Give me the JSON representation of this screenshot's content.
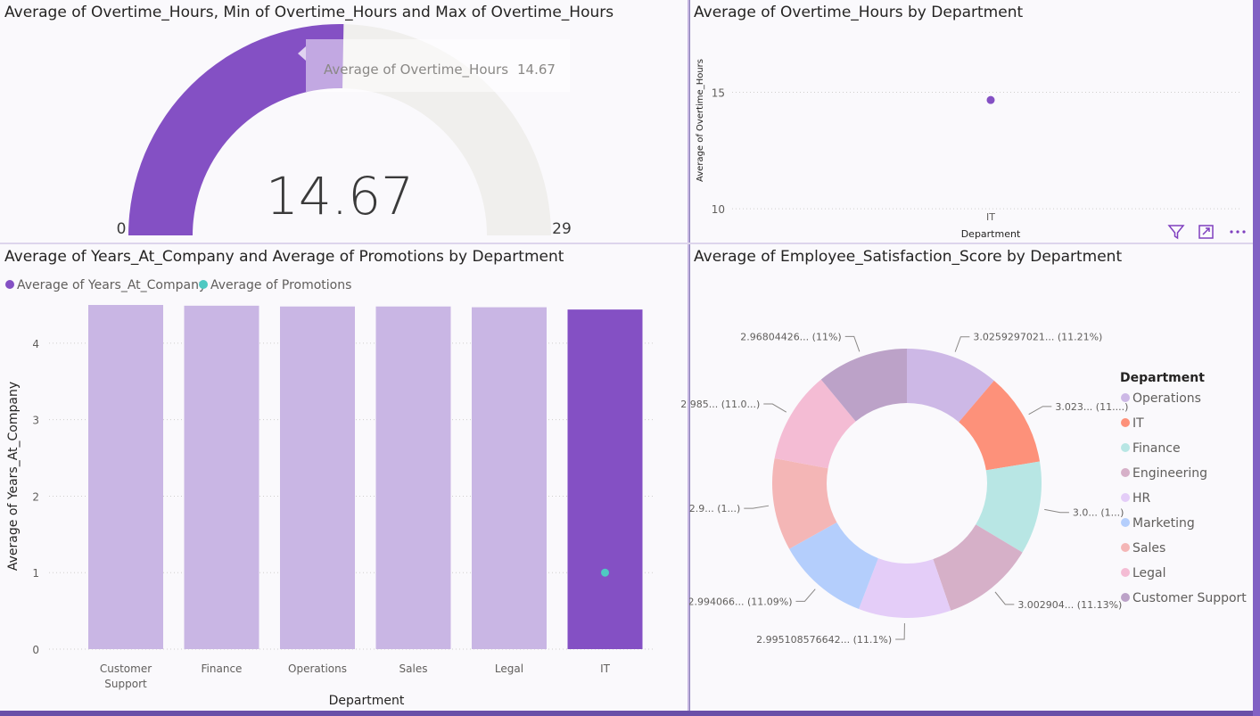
{
  "gauge": {
    "title": "Average of Overtime_Hours, Min of Overtime_Hours and Max of Overtime_Hours",
    "value_label": "14.67",
    "min_label": "0",
    "max_label": "29",
    "tooltip_label": "Average of Overtime_Hours",
    "tooltip_value": "14.67",
    "accent": "#8450c4",
    "track": "#f0efed"
  },
  "scatter": {
    "title": "Average of Overtime_Hours by Department"
  },
  "bars": {
    "title": "Average of Years_At_Company and Average of Promotions by Department",
    "legend": [
      "Average of Years_At_Company",
      "Average of Promotions"
    ],
    "category_labels": [
      "Customer\nSupport",
      "Finance",
      "Operations",
      "Sales",
      "Legal",
      "IT"
    ]
  },
  "donut": {
    "title": "Average of Employee_Satisfaction_Score by Department",
    "legend_title": "Department"
  },
  "icons": [
    "filter-icon",
    "focus-mode-icon",
    "more-options-icon"
  ],
  "chart_data": [
    {
      "type": "gauge",
      "value": 14.67,
      "min": 0,
      "max": 29
    },
    {
      "type": "scatter",
      "x": [
        "IT"
      ],
      "y": [
        14.67
      ],
      "xlabel": "Department",
      "ylabel": "Average of Overtime_Hours",
      "ylim": [
        9.2,
        18.2
      ],
      "yticks": [
        10,
        15
      ],
      "grid": true,
      "color": "#8450c4"
    },
    {
      "type": "bar",
      "categories": [
        "Customer Support",
        "Finance",
        "Operations",
        "Sales",
        "Legal",
        "IT"
      ],
      "series": [
        {
          "name": "Average of Years_At_Company",
          "values": [
            4.5,
            4.49,
            4.48,
            4.48,
            4.47,
            4.44
          ],
          "color": "#c9b6e4",
          "highlight_color": "#8450c4"
        },
        {
          "name": "Average of Promotions",
          "values": [
            null,
            null,
            null,
            null,
            null,
            1.0
          ],
          "color": "#4fc9c2"
        }
      ],
      "xlabel": "Department",
      "ylabel": "Average of Years_At_Company",
      "ylim": [
        0,
        4.5
      ],
      "yticks": [
        0,
        1,
        2,
        3,
        4
      ],
      "highlighted": "IT",
      "legend": "top-left",
      "grid": true
    },
    {
      "type": "pie",
      "donut": true,
      "categories": [
        "Operations",
        "IT",
        "Finance",
        "Engineering",
        "HR",
        "Marketing",
        "Sales",
        "Legal",
        "Customer Support"
      ],
      "values": [
        11.21,
        11.2,
        11.17,
        11.13,
        11.1,
        11.09,
        11.07,
        11.03,
        11.0
      ],
      "data_labels": [
        "3.0259297021... (11.21%)",
        "3.023... (11....)",
        "3.0... (1...)",
        "3.002904... (11.13%)",
        "2.995108576642... (11.1%)",
        "2.994066... (11.09%)",
        "2.9... (1...)",
        "2.985... (11.0...)",
        "2.96804426... (11%)"
      ],
      "colors": [
        "#cdb8e6",
        "#fd917a",
        "#b8e6e4",
        "#d6b0c8",
        "#e4cdf8",
        "#b4cefc",
        "#f4b6b6",
        "#f4bcd4",
        "#bca2c8"
      ],
      "legend": "right"
    }
  ]
}
